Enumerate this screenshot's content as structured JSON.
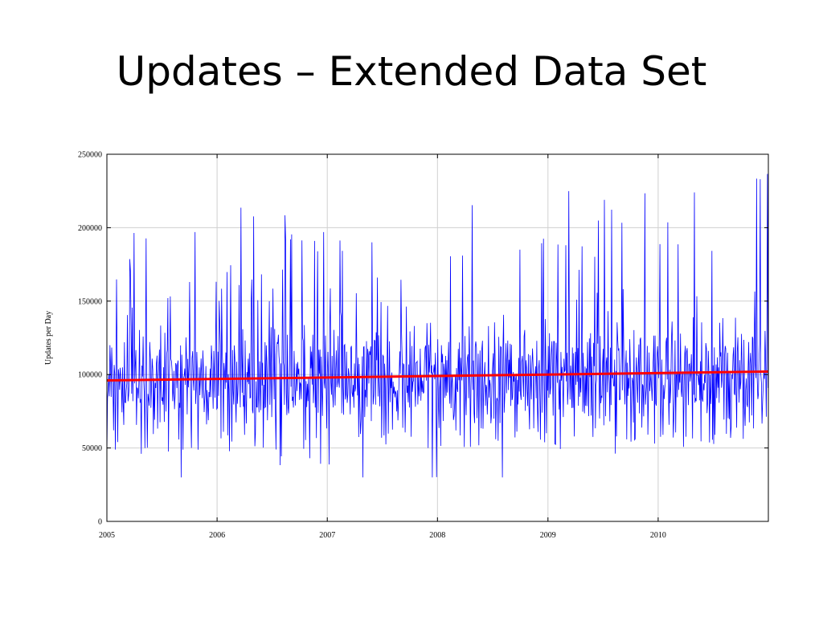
{
  "slide": {
    "title": "Updates – Extended Data Set"
  },
  "chart_data": {
    "type": "line",
    "title": "",
    "xlabel": "",
    "ylabel": "Updates per Day",
    "xlim": [
      "2005-01-01",
      "2011-01-01"
    ],
    "ylim": [
      0,
      250000
    ],
    "grid": true,
    "legend": "none",
    "x_ticks": [
      "2005",
      "2006",
      "2007",
      "2008",
      "2009",
      "2010"
    ],
    "y_ticks": [
      0,
      50000,
      100000,
      150000,
      200000,
      250000
    ],
    "colors": {
      "series": "#0000ff",
      "trend": "#ff0000",
      "grid": "#d0d0d0",
      "axes": "#000000"
    },
    "series": [
      {
        "kind": "daily",
        "approx_mean": 98000,
        "approx_min": 30000,
        "approx_max": 245000,
        "sampled_peaks": [
          {
            "x": "2005-02-15",
            "y": 176000
          },
          {
            "x": "2005-04-10",
            "y": 189000
          },
          {
            "x": "2005-05-20",
            "y": 183000
          },
          {
            "x": "2005-10-20",
            "y": 197000
          },
          {
            "x": "2005-11-12",
            "y": 194000
          },
          {
            "x": "2006-03-20",
            "y": 173000
          },
          {
            "x": "2006-09-01",
            "y": 192000
          },
          {
            "x": "2006-11-20",
            "y": 191000
          },
          {
            "x": "2006-12-20",
            "y": 197000
          },
          {
            "x": "2007-06-15",
            "y": 187000
          },
          {
            "x": "2007-12-10",
            "y": 191000
          },
          {
            "x": "2008-01-25",
            "y": 180000
          },
          {
            "x": "2008-06-01",
            "y": 182000
          },
          {
            "x": "2009-03-01",
            "y": 188000
          },
          {
            "x": "2010-03-01",
            "y": 210000
          },
          {
            "x": "2010-05-01",
            "y": 224000
          },
          {
            "x": "2010-07-01",
            "y": 222000
          },
          {
            "x": "2010-10-01",
            "y": 245000
          },
          {
            "x": "2010-12-05",
            "y": 233000
          }
        ],
        "sampled_lows": [
          {
            "x": "2005-01-02",
            "y": 30000
          },
          {
            "x": "2005-02-25",
            "y": 42000
          },
          {
            "x": "2005-04-25",
            "y": 46000
          },
          {
            "x": "2007-12-01",
            "y": 50000
          },
          {
            "x": "2008-02-20",
            "y": 43000
          },
          {
            "x": "2008-09-01",
            "y": 43000
          },
          {
            "x": "2008-11-20",
            "y": 41000
          }
        ]
      },
      {
        "kind": "trend",
        "x": [
          "2005-01-01",
          "2011-01-01"
        ],
        "values": [
          96000,
          102000
        ]
      }
    ]
  }
}
